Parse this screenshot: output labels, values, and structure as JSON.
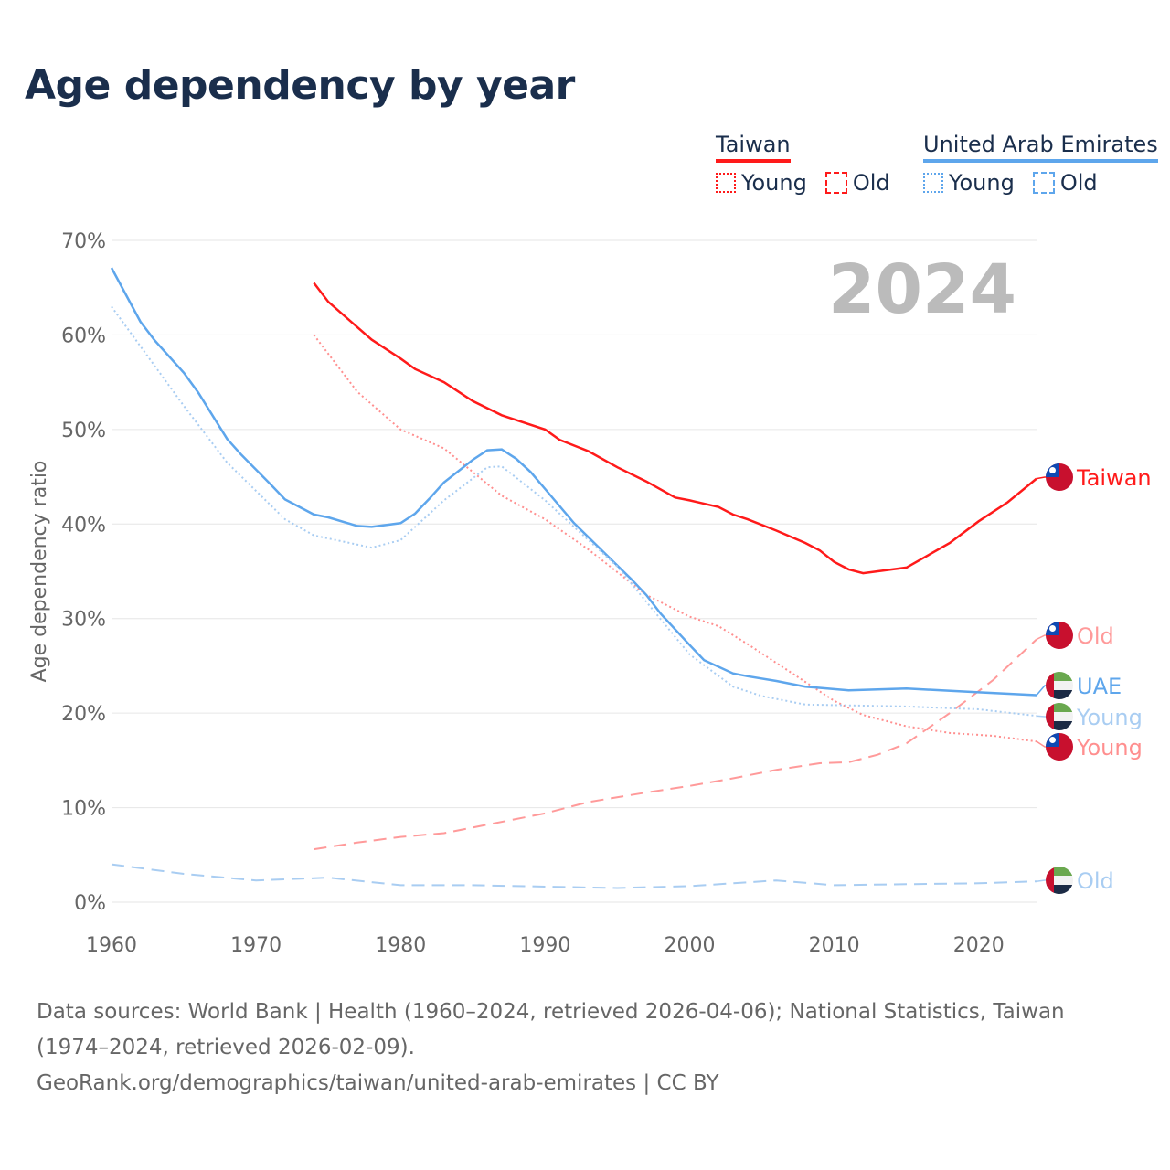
{
  "title": "Age dependency by year",
  "legend": {
    "groups": [
      {
        "name": "Taiwan",
        "color": "#ff1a1a",
        "items": [
          "Young",
          "Old"
        ]
      },
      {
        "name": "United Arab Emirates",
        "color": "#5ea6ec",
        "items": [
          "Young",
          "Old"
        ]
      }
    ]
  },
  "footer": {
    "sources": "Data sources: World Bank | Health (1960–2024, retrieved 2026-04-06); National Statistics, Taiwan (1974–2024, retrieved 2026-02-09).",
    "link": "GeoRank.org/demographics/taiwan/united-arab-emirates | CC BY"
  },
  "chart_data": {
    "type": "line",
    "title": "Age dependency by year",
    "ylabel": "Age dependency ratio",
    "xlabel": "",
    "xlim": [
      1960,
      2024
    ],
    "ylim": [
      0,
      70
    ],
    "xticks": [
      "1960",
      "1970",
      "1980",
      "1990",
      "2000",
      "2010",
      "2020"
    ],
    "yticks": [
      "0%",
      "10%",
      "20%",
      "30%",
      "40%",
      "50%",
      "60%",
      "70%"
    ],
    "year_label": "2024",
    "grid": true,
    "series": [
      {
        "name": "Taiwan",
        "end_label": "Taiwan",
        "country": "taiwan",
        "color": "#ff1a1a",
        "style": "solid",
        "x": [
          1974,
          1975,
          1978,
          1980,
          1981,
          1983,
          1985,
          1987,
          1990,
          1991,
          1993,
          1995,
          1997,
          1999,
          2000,
          2002,
          2003,
          2004,
          2006,
          2008,
          2009,
          2010,
          2011,
          2012,
          2015,
          2018,
          2020,
          2022,
          2024
        ],
        "y": [
          65.5,
          63.5,
          59.5,
          57.5,
          56.4,
          55,
          53,
          51.5,
          50,
          48.9,
          47.7,
          46,
          44.5,
          42.8,
          42.5,
          41.8,
          41,
          40.5,
          39.3,
          38,
          37.2,
          36,
          35.2,
          34.8,
          35.4,
          38,
          40.3,
          42.3,
          44.8
        ]
      },
      {
        "name": "Taiwan Young",
        "end_label": "Young",
        "country": "taiwan",
        "color": "#ff8f8f",
        "style": "dotted",
        "x": [
          1974,
          1977,
          1980,
          1983,
          1987,
          1990,
          1993,
          1997,
          2000,
          2002,
          2004,
          2006,
          2008,
          2010,
          2012,
          2015,
          2018,
          2021,
          2024
        ],
        "y": [
          60,
          54,
          50,
          48,
          43,
          40.5,
          37.3,
          32.5,
          30.2,
          29.2,
          27.3,
          25.3,
          23.3,
          21.3,
          19.8,
          18.6,
          17.9,
          17.6,
          17.0
        ]
      },
      {
        "name": "Taiwan Old",
        "end_label": "Old",
        "country": "taiwan",
        "color": "#ff9a9a",
        "style": "dashed",
        "x": [
          1974,
          1977,
          1980,
          1983,
          1986,
          1990,
          1993,
          1997,
          2000,
          2003,
          2006,
          2009,
          2011,
          2013,
          2015,
          2018,
          2021,
          2024
        ],
        "y": [
          5.6,
          6.3,
          6.9,
          7.3,
          8.2,
          9.4,
          10.6,
          11.6,
          12.3,
          13.1,
          14,
          14.7,
          14.8,
          15.6,
          16.8,
          20,
          23.5,
          27.8
        ]
      },
      {
        "name": "United Arab Emirates",
        "end_label": "UAE",
        "country": "uae",
        "color": "#5ea6ec",
        "style": "solid",
        "x": [
          1960,
          1962,
          1963,
          1965,
          1966,
          1968,
          1969,
          1971,
          1972,
          1974,
          1975,
          1977,
          1978,
          1980,
          1981,
          1982,
          1983,
          1985,
          1986,
          1987,
          1988,
          1989,
          1990,
          1992,
          1994,
          1996,
          1997,
          1998,
          2000,
          2001,
          2003,
          2004,
          2006,
          2008,
          2011,
          2015,
          2020,
          2024
        ],
        "y": [
          67.1,
          61.4,
          59.4,
          56,
          53.9,
          49,
          47.3,
          44.2,
          42.6,
          41,
          40.7,
          39.8,
          39.7,
          40.1,
          41.1,
          42.7,
          44.4,
          46.8,
          47.8,
          47.9,
          46.9,
          45.5,
          43.7,
          40.1,
          37.1,
          34.1,
          32.5,
          30.5,
          27.2,
          25.6,
          24.2,
          23.9,
          23.4,
          22.8,
          22.4,
          22.6,
          22.2,
          21.9
        ]
      },
      {
        "name": "United Arab Emirates Young",
        "end_label": "Young",
        "country": "uae",
        "color": "#a9cdf2",
        "style": "dotted",
        "x": [
          1960,
          1965,
          1968,
          1972,
          1974,
          1978,
          1980,
          1983,
          1986,
          1987,
          1990,
          1995,
          2000,
          2003,
          2005,
          2008,
          2015,
          2020,
          2024
        ],
        "y": [
          63,
          52.5,
          46.5,
          40.5,
          38.8,
          37.5,
          38.3,
          42.5,
          46,
          46.1,
          42.5,
          35.5,
          26.2,
          22.8,
          21.8,
          20.9,
          20.7,
          20.4,
          19.7
        ]
      },
      {
        "name": "United Arab Emirates Old",
        "end_label": "Old",
        "country": "uae",
        "color": "#a9cdf2",
        "style": "dashed",
        "x": [
          1960,
          1965,
          1970,
          1975,
          1980,
          1985,
          1995,
          2000,
          2006,
          2010,
          2015,
          2020,
          2024
        ],
        "y": [
          4.0,
          3.0,
          2.3,
          2.6,
          1.8,
          1.8,
          1.5,
          1.7,
          2.3,
          1.8,
          1.9,
          2.0,
          2.2
        ]
      }
    ]
  }
}
